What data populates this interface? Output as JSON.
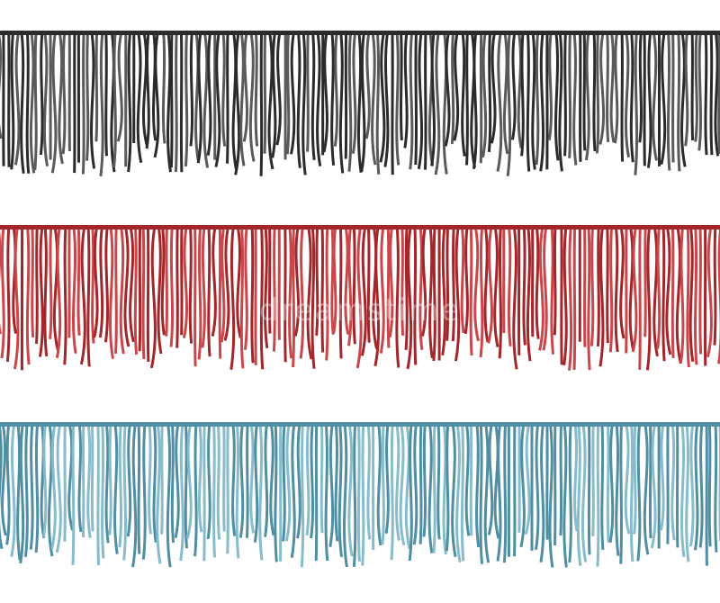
{
  "fringes": [
    {
      "name": "black",
      "color": "#2b2b2b",
      "light": "#5a5a5a"
    },
    {
      "name": "red",
      "color": "#a3262a",
      "light": "#c9474a"
    },
    {
      "name": "blue",
      "color": "#4f8ea3",
      "light": "#86bccb"
    }
  ],
  "background": "#ffffff",
  "watermark": "dreamstime"
}
